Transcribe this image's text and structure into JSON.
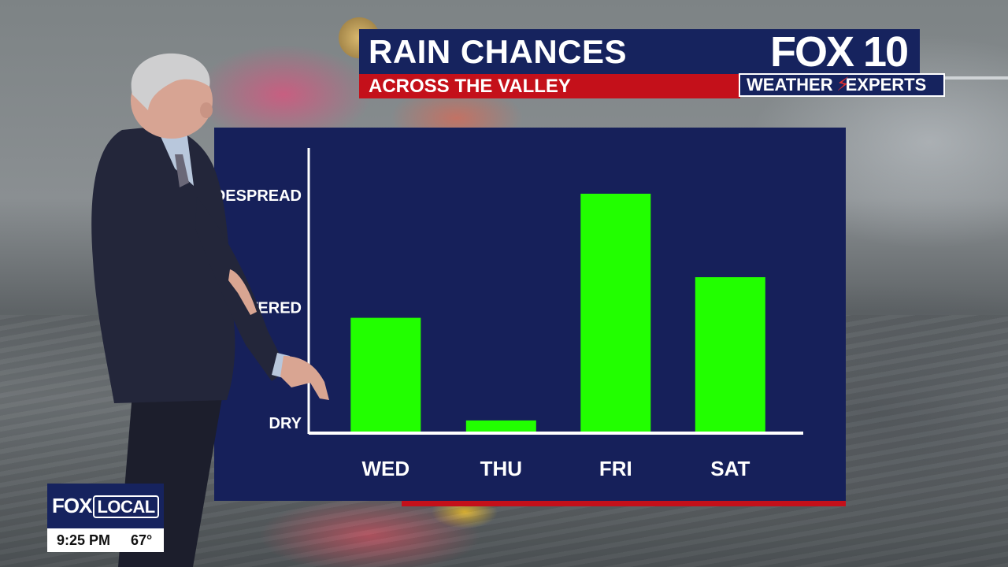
{
  "header": {
    "title": "RAIN CHANCES",
    "subtitle": "ACROSS THE VALLEY"
  },
  "branding": {
    "station_logo": "FOX 10",
    "weather_badge_left": "WEATHER",
    "weather_badge_right": "EXPERTS",
    "local_logo_fox": "FOX",
    "local_logo_local": "LOCAL"
  },
  "status": {
    "time": "9:25 PM",
    "temperature": "67°"
  },
  "colors": {
    "panel": "#16205a",
    "bar": "#22ff00",
    "accent_red": "#c4101a",
    "brand_navy": "#16235e"
  },
  "chart_data": {
    "type": "bar",
    "categories": [
      "WED",
      "THU",
      "FRI",
      "SAT"
    ],
    "values": [
      48,
      5,
      100,
      65
    ],
    "y_levels": [
      {
        "label": "DRY",
        "value": 0
      },
      {
        "label": "SCATTERED",
        "value": 53
      },
      {
        "label": "WIDESPREAD",
        "value": 100
      }
    ],
    "ylim": [
      0,
      100
    ],
    "grid": false,
    "bar_color": "#22ff00",
    "xlabel": "",
    "ylabel": ""
  }
}
